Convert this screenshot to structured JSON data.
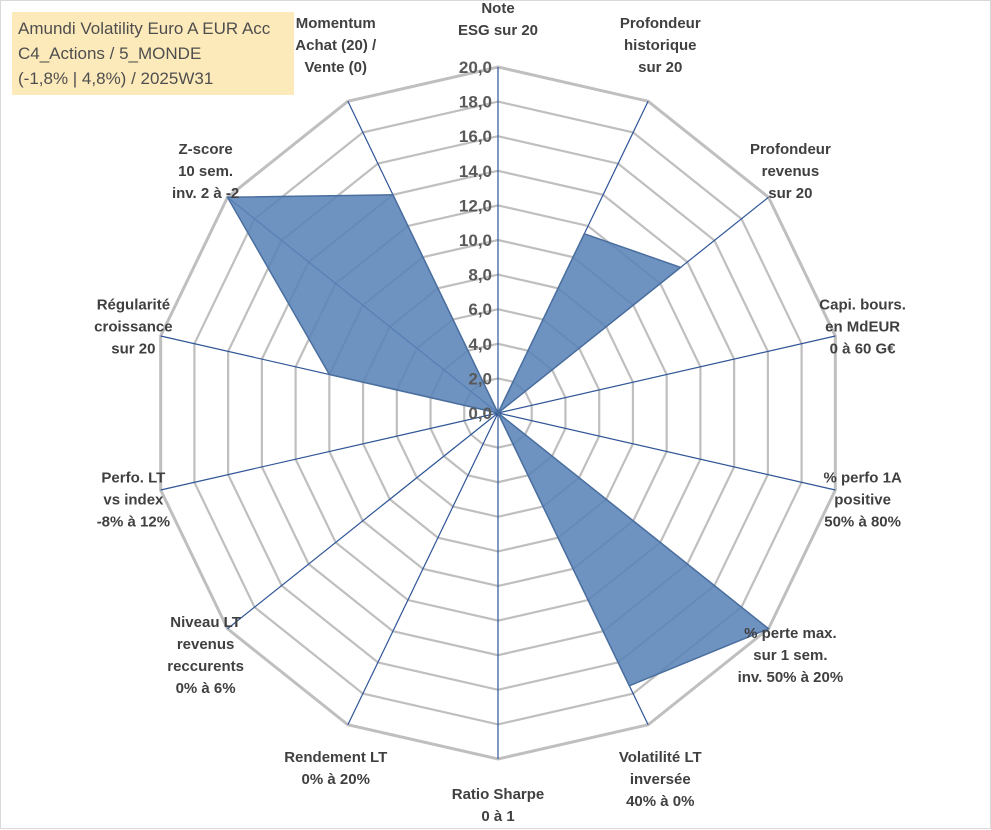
{
  "title_box": {
    "line1": "Amundi Volatility Euro A EUR Acc",
    "line2": "C4_Actions / 5_MONDE",
    "line3": "(-1,8% | 4,8%) / 2025W31"
  },
  "colors": {
    "series_fill": "#5b84b8",
    "series_edge": "#4a6f9e",
    "grid": "#bfbfbf",
    "spoke": "#2f5597",
    "title_bg": "#fde9b6"
  },
  "chart_data": {
    "type": "radar",
    "rmax": 20,
    "tick_values": [
      0,
      2,
      4,
      6,
      8,
      10,
      12,
      14,
      16,
      18,
      20
    ],
    "tick_labels": [
      "0,0",
      "2,0",
      "4,0",
      "6,0",
      "8,0",
      "10,0",
      "12,0",
      "14,0",
      "16,0",
      "18,0",
      "20,0"
    ],
    "axes": [
      {
        "label": [
          "Note",
          "ESG sur 20"
        ],
        "value": 0
      },
      {
        "label": [
          "Profondeur",
          "historique",
          "sur 20"
        ],
        "value": 11.5
      },
      {
        "label": [
          "Profondeur",
          "revenus",
          "sur 20"
        ],
        "value": 13.5
      },
      {
        "label": [
          "Capi. bours.",
          "en MdEUR",
          "0 à 60 G€"
        ],
        "value": 0
      },
      {
        "label": [
          "% perfo 1A",
          "positive",
          "50% à 80%"
        ],
        "value": 0
      },
      {
        "label": [
          "% perte max.",
          "sur 1 sem.",
          "inv. 50% à 20%"
        ],
        "value": 20
      },
      {
        "label": [
          "Volatilité LT",
          "inversée",
          "40% à 0%"
        ],
        "value": 17.5
      },
      {
        "label": [
          "Ratio Sharpe",
          "0 à 1"
        ],
        "value": 0
      },
      {
        "label": [
          "Rendement LT",
          "0% à 20%"
        ],
        "value": 0
      },
      {
        "label": [
          "Niveau LT",
          "revenus",
          "reccurents",
          "0% à 6%"
        ],
        "value": 0
      },
      {
        "label": [
          "Perfo. LT",
          "vs index",
          "-8% à 12%"
        ],
        "value": 0
      },
      {
        "label": [
          "Régularité",
          "croissance",
          "sur 20"
        ],
        "value": 10
      },
      {
        "label": [
          "Z-score",
          "10 sem.",
          "inv. 2 à -2"
        ],
        "value": 20
      },
      {
        "label": [
          "Momentum",
          "Achat (20) /",
          "Vente (0)"
        ],
        "value": 14
      }
    ]
  }
}
